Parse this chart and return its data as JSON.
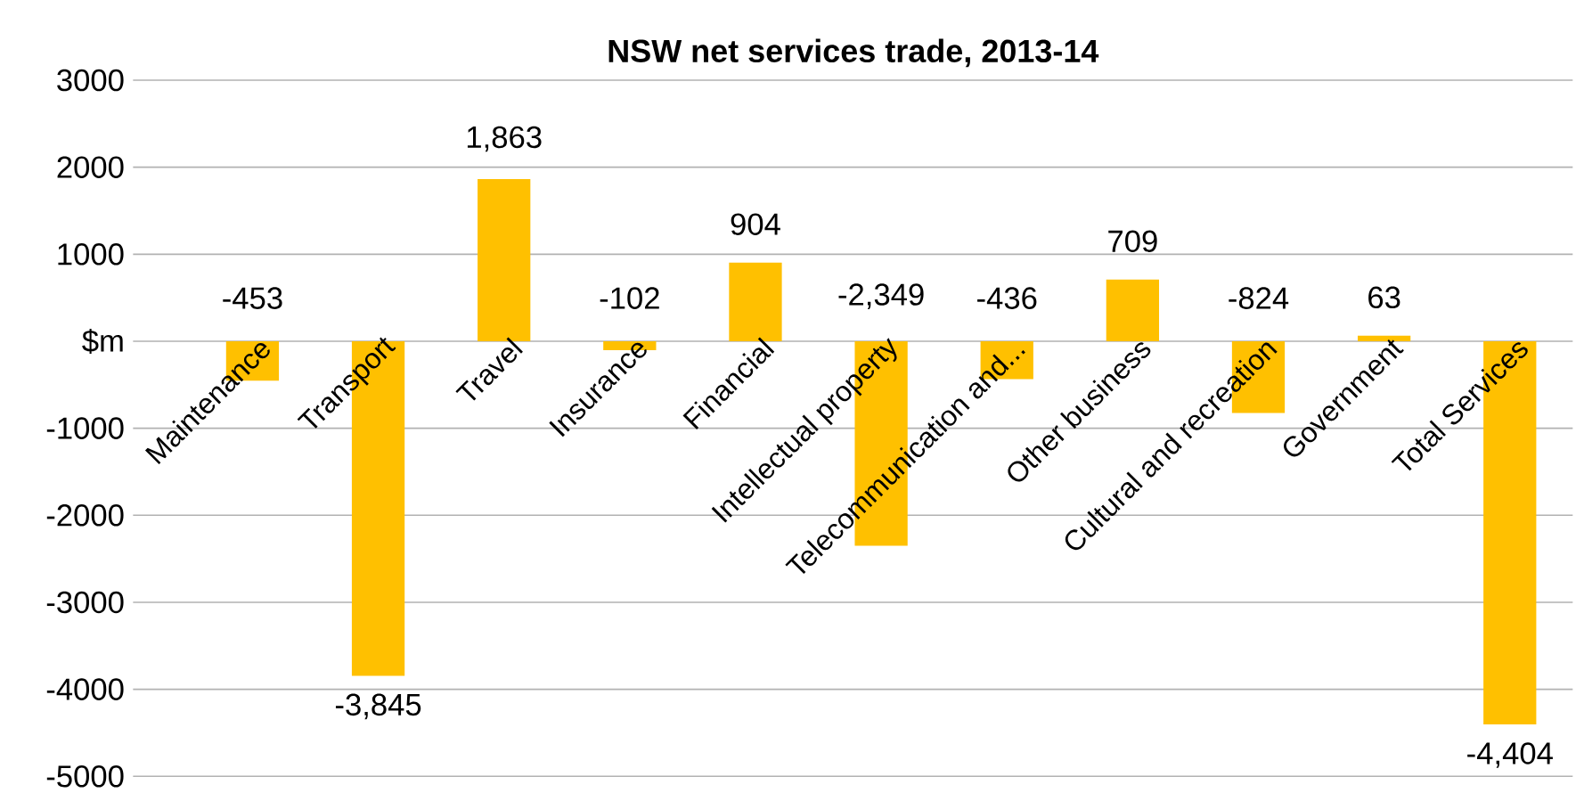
{
  "chart_data": {
    "type": "bar",
    "title": "NSW net services trade, 2013-14",
    "categories": [
      "Maintenance",
      "Transport",
      "Travel",
      "Insurance",
      "Financial",
      "Intellectual property",
      "Telecommunication and...",
      "Other business",
      "Cultural and recreation",
      "Government",
      "Total Services"
    ],
    "values": [
      -453,
      -3845,
      1863,
      -102,
      904,
      -2349,
      -436,
      709,
      -824,
      63,
      -4404
    ],
    "value_labels": [
      "-453",
      "-3,845",
      "1,863",
      "-102",
      "904",
      "-2,349",
      "-436",
      "709",
      "-824",
      "63",
      "-4,404"
    ],
    "color": "#ffc000",
    "ylim": [
      -5000,
      3000
    ],
    "yticks": [
      -5000,
      -4000,
      -3000,
      -2000,
      -1000,
      {
        "value": 0,
        "label": "$m"
      },
      1000,
      2000,
      3000
    ],
    "grid": "y"
  }
}
